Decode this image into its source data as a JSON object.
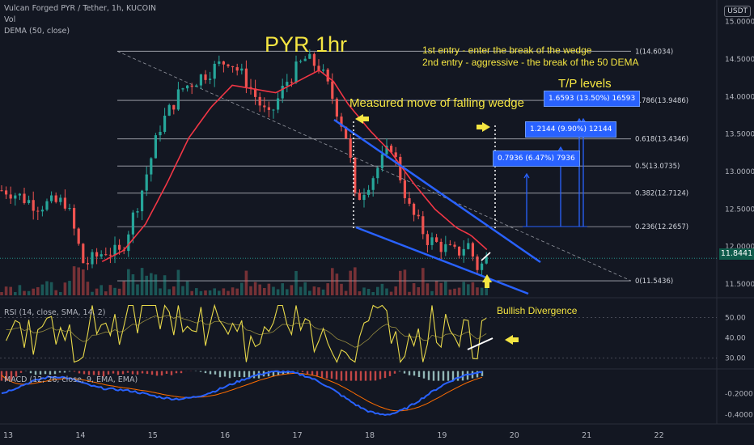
{
  "header": {
    "symbol": "Vulcan Forged PYR / Tether, 1h, KUCOIN",
    "vol_label": "Vol",
    "dema_label": "DEMA (50, close)",
    "currency_button": "USDT"
  },
  "indicators": {
    "rsi_label": "RSI (14, close, SMA, 14, 2)",
    "macd_label": "MACD (12, 26, close, 9, EMA, EMA)"
  },
  "annotations": {
    "title": "PYR 1hr",
    "entry1": "1st entry - enter the break of the wedge",
    "entry2": "2nd entry  - aggressive - the break of the 50 DEMA",
    "tp_title": "T/P levels",
    "wedge_note": "Measured move of falling wedge",
    "divergence": "Bullish Divergence"
  },
  "tp_boxes": [
    {
      "text": "1.6593 (13.50%) 16593",
      "target": 13.96
    },
    {
      "text": "1.2144 (9.90%) 12144",
      "target": 13.5
    },
    {
      "text": "0.7936 (6.47%) 7936",
      "target": 13.06
    }
  ],
  "current_price": "11.8441",
  "colors": {
    "background": "#131722",
    "up": "#26a69a",
    "down": "#ef5350",
    "dema": "#f23645",
    "annotation": "#f5e642",
    "wedge": "#2962ff",
    "rsi": "#e8d94a",
    "macd": "#2962ff",
    "signal": "#ff6d00",
    "grid_text": "#b2b5be"
  },
  "chart_data": {
    "type": "candlestick",
    "price_axis": {
      "ticks": [
        "15.0000",
        "14.5000",
        "14.0000",
        "13.5000",
        "13.0000",
        "12.5000",
        "12.0000",
        "11.5000"
      ],
      "min": 11.35,
      "max": 15.2
    },
    "x_axis": {
      "ticks": [
        "13",
        "14",
        "15",
        "16",
        "17",
        "18",
        "19",
        "20",
        "21",
        "22"
      ]
    },
    "fib_levels": [
      {
        "label": "1(14.6034)",
        "value": 14.6034
      },
      {
        "label": "0.786(13.9486)",
        "value": 13.9486
      },
      {
        "label": "0.618(13.4346)",
        "value": 13.4346
      },
      {
        "label": "0.5(13.0735)",
        "value": 13.0735
      },
      {
        "label": "0.382(12.7124)",
        "value": 12.7124
      },
      {
        "label": "0.236(12.2657)",
        "value": 12.2657
      },
      {
        "label": "0(11.5436)",
        "value": 11.5436
      }
    ],
    "price_keypoints": [
      {
        "day": 13.0,
        "price": 12.75
      },
      {
        "day": 13.4,
        "price": 12.55
      },
      {
        "day": 13.8,
        "price": 12.6
      },
      {
        "day": 14.05,
        "price": 11.75
      },
      {
        "day": 14.35,
        "price": 11.95
      },
      {
        "day": 14.55,
        "price": 11.9
      },
      {
        "day": 14.85,
        "price": 12.75
      },
      {
        "day": 15.1,
        "price": 13.6
      },
      {
        "day": 15.4,
        "price": 14.1
      },
      {
        "day": 15.8,
        "price": 14.35
      },
      {
        "day": 16.05,
        "price": 14.5
      },
      {
        "day": 16.3,
        "price": 14.2
      },
      {
        "day": 16.6,
        "price": 13.7
      },
      {
        "day": 16.85,
        "price": 14.2
      },
      {
        "day": 17.1,
        "price": 14.5
      },
      {
        "day": 17.3,
        "price": 14.4
      },
      {
        "day": 17.5,
        "price": 13.95
      },
      {
        "day": 17.7,
        "price": 13.4
      },
      {
        "day": 17.8,
        "price": 12.6
      },
      {
        "day": 18.05,
        "price": 12.95
      },
      {
        "day": 18.3,
        "price": 13.35
      },
      {
        "day": 18.55,
        "price": 12.5
      },
      {
        "day": 18.8,
        "price": 12.1
      },
      {
        "day": 19.0,
        "price": 12.0
      },
      {
        "day": 19.2,
        "price": 11.9
      },
      {
        "day": 19.35,
        "price": 12.05
      },
      {
        "day": 19.5,
        "price": 11.7
      },
      {
        "day": 19.63,
        "price": 11.85
      }
    ],
    "dema_keypoints": [
      {
        "day": 14.3,
        "price": 11.8
      },
      {
        "day": 14.6,
        "price": 11.95
      },
      {
        "day": 14.9,
        "price": 12.3
      },
      {
        "day": 15.2,
        "price": 12.85
      },
      {
        "day": 15.5,
        "price": 13.45
      },
      {
        "day": 15.8,
        "price": 13.85
      },
      {
        "day": 16.1,
        "price": 14.15
      },
      {
        "day": 16.4,
        "price": 14.1
      },
      {
        "day": 16.7,
        "price": 14.05
      },
      {
        "day": 17.0,
        "price": 14.2
      },
      {
        "day": 17.3,
        "price": 14.35
      },
      {
        "day": 17.5,
        "price": 14.2
      },
      {
        "day": 17.7,
        "price": 13.9
      },
      {
        "day": 18.0,
        "price": 13.55
      },
      {
        "day": 18.3,
        "price": 13.25
      },
      {
        "day": 18.6,
        "price": 12.85
      },
      {
        "day": 18.9,
        "price": 12.5
      },
      {
        "day": 19.2,
        "price": 12.25
      },
      {
        "day": 19.4,
        "price": 12.15
      },
      {
        "day": 19.63,
        "price": 11.95
      }
    ],
    "rsi_axis": {
      "ticks": [
        "50.00",
        "40.00",
        "30.00"
      ],
      "min": 25,
      "max": 57
    },
    "macd_axis": {
      "ticks": [
        "-0.2000",
        "-0.4000"
      ],
      "min": -0.46,
      "max": 0.02
    }
  }
}
